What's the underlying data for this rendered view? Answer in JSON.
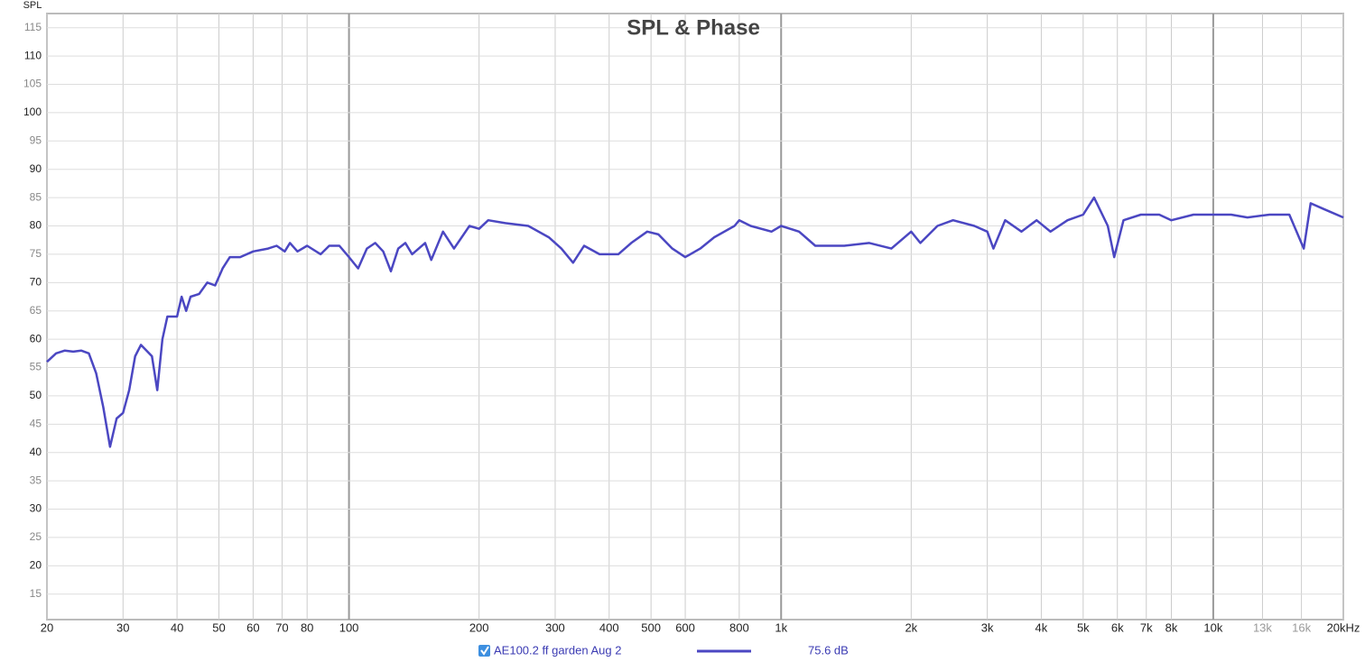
{
  "chart_data": {
    "type": "line",
    "title": "SPL & Phase",
    "y_label": "SPL",
    "x_scale": "log",
    "grid": true,
    "xlim": [
      20,
      20000
    ],
    "ylim": [
      10.5,
      117.5
    ],
    "yticks": [
      15,
      20,
      25,
      30,
      35,
      40,
      45,
      50,
      55,
      60,
      65,
      70,
      75,
      80,
      85,
      90,
      95,
      100,
      105,
      110,
      115
    ],
    "xticks": [
      20,
      30,
      40,
      50,
      60,
      70,
      80,
      100,
      200,
      300,
      400,
      500,
      600,
      800,
      {
        "value": 1000,
        "label": "1k"
      },
      {
        "value": 2000,
        "label": "2k"
      },
      {
        "value": 3000,
        "label": "3k"
      },
      {
        "value": 4000,
        "label": "4k"
      },
      {
        "value": 5000,
        "label": "5k"
      },
      {
        "value": 6000,
        "label": "6k"
      },
      {
        "value": 7000,
        "label": "7k"
      },
      {
        "value": 8000,
        "label": "8k"
      },
      {
        "value": 10000,
        "label": "10k"
      },
      {
        "value": 13000,
        "label": "13k"
      },
      {
        "value": 16000,
        "label": "16k"
      },
      {
        "value": 20000,
        "label": "20kHz"
      }
    ],
    "x": [
      20,
      21,
      22,
      23,
      24,
      25,
      26,
      27,
      28,
      29,
      30,
      31,
      32,
      33,
      34,
      35,
      36,
      37,
      38,
      40,
      41,
      42,
      43,
      45,
      47,
      49,
      51,
      53,
      56,
      60,
      65,
      68,
      71,
      73,
      76,
      80,
      86,
      90,
      95,
      100,
      105,
      110,
      115,
      120,
      125,
      130,
      135,
      140,
      150,
      155,
      165,
      175,
      190,
      200,
      210,
      230,
      260,
      290,
      310,
      330,
      350,
      380,
      420,
      450,
      490,
      520,
      560,
      600,
      650,
      700,
      780,
      800,
      850,
      950,
      1000,
      1100,
      1200,
      1400,
      1600,
      1800,
      2000,
      2100,
      2300,
      2500,
      2800,
      3000,
      3100,
      3300,
      3600,
      3900,
      4200,
      4600,
      5000,
      5300,
      5700,
      5900,
      6200,
      6800,
      7500,
      8000,
      9000,
      10000,
      11000,
      12000,
      13500,
      15000,
      16200,
      16800,
      18000,
      20000
    ],
    "series": [
      {
        "name": "AE100.2 ff garden Aug 2",
        "legend_value": "75.6 dB",
        "color": "#4b47c2",
        "values": [
          56,
          57.5,
          58,
          57.8,
          58,
          57.5,
          54,
          48,
          41,
          46,
          47,
          51,
          57,
          59,
          58,
          57,
          51,
          60,
          64,
          64,
          67.5,
          65,
          67.5,
          68,
          70,
          69.5,
          72.5,
          74.5,
          74.5,
          75.5,
          76,
          76.5,
          75.5,
          77,
          75.5,
          76.5,
          75,
          76.5,
          76.5,
          74.5,
          72.5,
          76,
          77,
          75.5,
          72,
          76,
          77,
          75,
          77,
          74,
          79,
          76,
          80,
          79.5,
          81,
          80.5,
          80,
          78,
          76,
          73.5,
          76.5,
          75,
          75,
          77,
          79,
          78.5,
          76,
          74.5,
          76,
          78,
          80,
          81,
          80,
          79,
          80,
          79,
          76.5,
          76.5,
          77,
          76,
          79,
          77,
          80,
          81,
          80,
          79,
          76,
          81,
          79,
          81,
          79,
          81,
          82,
          85,
          80,
          74.5,
          81,
          82,
          82,
          81,
          82,
          82,
          82,
          81.5,
          82,
          82,
          76,
          84,
          83,
          81.5
        ]
      }
    ]
  }
}
